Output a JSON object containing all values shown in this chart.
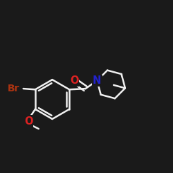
{
  "background_color": "#1a1a1a",
  "bond_color": "#f0f0f0",
  "atom_colors": {
    "O": "#dd2222",
    "N": "#2222cc",
    "Br": "#aa3311",
    "C": "#f0f0f0"
  },
  "lw": 1.8,
  "font_size_atom": 10.5,
  "figsize": [
    2.5,
    2.5
  ],
  "dpi": 100
}
